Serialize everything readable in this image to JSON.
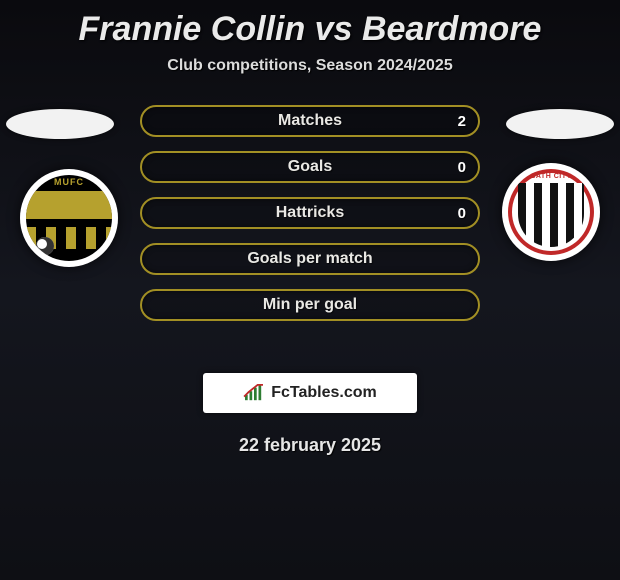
{
  "title": {
    "player1": "Frannie Collin",
    "vs": "vs",
    "player2": "Beardmore",
    "color": "#eaeaea"
  },
  "subtitle": "Club competitions, Season 2024/2025",
  "club_left": {
    "name": "MUFC",
    "primary": "#b6a12e",
    "secondary": "#000000"
  },
  "club_right": {
    "name": "BATH CITY",
    "primary": "#c02828",
    "secondary": "#111111"
  },
  "bars": [
    {
      "label": "Matches",
      "left": "",
      "right": "2",
      "border": "#a28f24",
      "text": "#e9e8e4"
    },
    {
      "label": "Goals",
      "left": "",
      "right": "0",
      "border": "#a28f24",
      "text": "#e9e8e4"
    },
    {
      "label": "Hattricks",
      "left": "",
      "right": "0",
      "border": "#a28f24",
      "text": "#e9e8e4"
    },
    {
      "label": "Goals per match",
      "left": "",
      "right": "",
      "border": "#a28f24",
      "text": "#e9e8e4"
    },
    {
      "label": "Min per goal",
      "left": "",
      "right": "",
      "border": "#a28f24",
      "text": "#e9e8e4"
    }
  ],
  "brand": "FcTables.com",
  "date": "22 february 2025",
  "colors": {
    "background_top": "#0a0a0e",
    "background_mid": "#14161e",
    "ellipse": "#f2f2f2"
  }
}
